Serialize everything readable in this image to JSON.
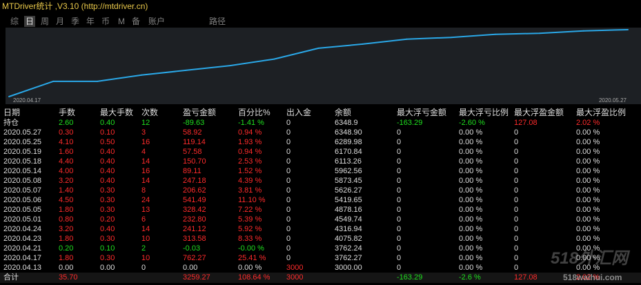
{
  "window": {
    "title": "MTDriver统计 ,V3.10 (http://mtdriver.cn)"
  },
  "tabs": [
    {
      "label": "综",
      "selected": false
    },
    {
      "label": "日",
      "selected": true
    },
    {
      "label": "周",
      "selected": false
    },
    {
      "label": "月",
      "selected": false
    },
    {
      "label": "季",
      "selected": false
    },
    {
      "label": "年",
      "selected": false
    },
    {
      "label": "币",
      "selected": false
    },
    {
      "label": "M",
      "selected": false
    },
    {
      "label": "备",
      "selected": false
    },
    {
      "label": "账户",
      "selected": false
    },
    {
      "label": "路径",
      "selected": false
    }
  ],
  "colors": {
    "title": "#e9c84a",
    "tab_text": "#808080",
    "tab_selected_bg": "#3d3d3d",
    "tab_selected_text": "#e6e6e6",
    "chart_bg": "#1d2024",
    "axis_label": "#a8a8a8",
    "white": "#dedede",
    "red": "#ff2b2b",
    "green": "#1fe01f",
    "total_row_bg": "#151515"
  },
  "chart_data": {
    "type": "line",
    "series": [
      {
        "values": [
          3000.0,
          3762.27,
          3762.24,
          4075.82,
          4316.94,
          4549.74,
          4878.16,
          5419.65,
          5626.27,
          5873.45,
          5962.56,
          6113.26,
          6170.84,
          6289.98,
          6348.9
        ]
      }
    ],
    "x_tick_labels": [
      "2020.04.17",
      "2020.05.27"
    ],
    "ylim": [
      3000.0,
      6348.9
    ],
    "grid": false,
    "line_color": "#2aa8e8"
  },
  "table": {
    "columns": [
      "日期",
      "手数",
      "最大手数",
      "次数",
      "盈亏金额",
      "百分比%",
      "出入金",
      "余额",
      "最大浮亏金额",
      "最大浮亏比例",
      "最大浮盈金额",
      "最大浮盈比例"
    ],
    "rows": [
      {
        "cells": [
          "持仓",
          "2.60",
          "0.40",
          "12",
          "-89.63",
          "-1.41 %",
          "0",
          "6348.9",
          "-163.29",
          "-2.60 %",
          "127.08",
          "2.02 %"
        ],
        "tones": [
          "white",
          "green",
          "green",
          "green",
          "green",
          "green",
          "white",
          "white",
          "green",
          "green",
          "red",
          "red"
        ]
      },
      {
        "cells": [
          "2020.05.27",
          "0.30",
          "0.10",
          "3",
          "58.92",
          "0.94 %",
          "0",
          "6348.90",
          "0",
          "0.00 %",
          "0",
          "0.00 %"
        ],
        "tones": [
          "white",
          "red",
          "red",
          "red",
          "red",
          "red",
          "white",
          "white",
          "white",
          "white",
          "white",
          "white"
        ]
      },
      {
        "cells": [
          "2020.05.25",
          "4.10",
          "0.50",
          "16",
          "119.14",
          "1.93 %",
          "0",
          "6289.98",
          "0",
          "0.00 %",
          "0",
          "0.00 %"
        ],
        "tones": [
          "white",
          "red",
          "red",
          "red",
          "red",
          "red",
          "white",
          "white",
          "white",
          "white",
          "white",
          "white"
        ]
      },
      {
        "cells": [
          "2020.05.19",
          "1.60",
          "0.40",
          "4",
          "57.58",
          "0.94 %",
          "0",
          "6170.84",
          "0",
          "0.00 %",
          "0",
          "0.00 %"
        ],
        "tones": [
          "white",
          "red",
          "red",
          "red",
          "red",
          "red",
          "white",
          "white",
          "white",
          "white",
          "white",
          "white"
        ]
      },
      {
        "cells": [
          "2020.05.18",
          "4.40",
          "0.40",
          "14",
          "150.70",
          "2.53 %",
          "0",
          "6113.26",
          "0",
          "0.00 %",
          "0",
          "0.00 %"
        ],
        "tones": [
          "white",
          "red",
          "red",
          "red",
          "red",
          "red",
          "white",
          "white",
          "white",
          "white",
          "white",
          "white"
        ]
      },
      {
        "cells": [
          "2020.05.14",
          "4.00",
          "0.40",
          "16",
          "89.11",
          "1.52 %",
          "0",
          "5962.56",
          "0",
          "0.00 %",
          "0",
          "0.00 %"
        ],
        "tones": [
          "white",
          "red",
          "red",
          "red",
          "red",
          "red",
          "white",
          "white",
          "white",
          "white",
          "white",
          "white"
        ]
      },
      {
        "cells": [
          "2020.05.08",
          "3.20",
          "0.40",
          "14",
          "247.18",
          "4.39 %",
          "0",
          "5873.45",
          "0",
          "0.00 %",
          "0",
          "0.00 %"
        ],
        "tones": [
          "white",
          "red",
          "red",
          "red",
          "red",
          "red",
          "white",
          "white",
          "white",
          "white",
          "white",
          "white"
        ]
      },
      {
        "cells": [
          "2020.05.07",
          "1.40",
          "0.30",
          "8",
          "206.62",
          "3.81 %",
          "0",
          "5626.27",
          "0",
          "0.00 %",
          "0",
          "0.00 %"
        ],
        "tones": [
          "white",
          "red",
          "red",
          "red",
          "red",
          "red",
          "white",
          "white",
          "white",
          "white",
          "white",
          "white"
        ]
      },
      {
        "cells": [
          "2020.05.06",
          "4.50",
          "0.30",
          "24",
          "541.49",
          "11.10 %",
          "0",
          "5419.65",
          "0",
          "0.00 %",
          "0",
          "0.00 %"
        ],
        "tones": [
          "white",
          "red",
          "red",
          "red",
          "red",
          "red",
          "white",
          "white",
          "white",
          "white",
          "white",
          "white"
        ]
      },
      {
        "cells": [
          "2020.05.05",
          "1.80",
          "0.30",
          "13",
          "328.42",
          "7.22 %",
          "0",
          "4878.16",
          "0",
          "0.00 %",
          "0",
          "0.00 %"
        ],
        "tones": [
          "white",
          "red",
          "red",
          "red",
          "red",
          "red",
          "white",
          "white",
          "white",
          "white",
          "white",
          "white"
        ]
      },
      {
        "cells": [
          "2020.05.01",
          "0.80",
          "0.20",
          "6",
          "232.80",
          "5.39 %",
          "0",
          "4549.74",
          "0",
          "0.00 %",
          "0",
          "0.00 %"
        ],
        "tones": [
          "white",
          "red",
          "red",
          "red",
          "red",
          "red",
          "white",
          "white",
          "white",
          "white",
          "white",
          "white"
        ]
      },
      {
        "cells": [
          "2020.04.24",
          "3.20",
          "0.40",
          "14",
          "241.12",
          "5.92 %",
          "0",
          "4316.94",
          "0",
          "0.00 %",
          "0",
          "0.00 %"
        ],
        "tones": [
          "white",
          "red",
          "red",
          "red",
          "red",
          "red",
          "white",
          "white",
          "white",
          "white",
          "white",
          "white"
        ]
      },
      {
        "cells": [
          "2020.04.23",
          "1.80",
          "0.30",
          "10",
          "313.58",
          "8.33 %",
          "0",
          "4075.82",
          "0",
          "0.00 %",
          "0",
          "0.00 %"
        ],
        "tones": [
          "white",
          "red",
          "red",
          "red",
          "red",
          "red",
          "white",
          "white",
          "white",
          "white",
          "white",
          "white"
        ]
      },
      {
        "cells": [
          "2020.04.21",
          "0.20",
          "0.10",
          "2",
          "-0.03",
          "-0.00 %",
          "0",
          "3762.24",
          "0",
          "0.00 %",
          "0",
          "0.00 %"
        ],
        "tones": [
          "white",
          "green",
          "green",
          "green",
          "green",
          "green",
          "white",
          "white",
          "white",
          "white",
          "white",
          "white"
        ]
      },
      {
        "cells": [
          "2020.04.17",
          "1.80",
          "0.30",
          "10",
          "762.27",
          "25.41 %",
          "0",
          "3762.27",
          "0",
          "0.00 %",
          "0",
          "0.00 %"
        ],
        "tones": [
          "white",
          "red",
          "red",
          "red",
          "red",
          "red",
          "white",
          "white",
          "white",
          "white",
          "white",
          "white"
        ]
      },
      {
        "cells": [
          "2020.04.13",
          "0.00",
          "0.00",
          "0",
          "0.00",
          "0.00 %",
          "3000",
          "3000.00",
          "0",
          "0.00 %",
          "0",
          "0.00 %"
        ],
        "tones": [
          "white",
          "white",
          "white",
          "white",
          "white",
          "white",
          "red",
          "white",
          "white",
          "white",
          "white",
          "white"
        ]
      },
      {
        "cells": [
          "合计",
          "35.70",
          "",
          "",
          "3259.27",
          "108.64 %",
          "3000",
          "",
          "-163.29",
          "-2.6 %",
          "127.08",
          "2.02 %"
        ],
        "tones": [
          "white",
          "red",
          "white",
          "white",
          "red",
          "red",
          "red",
          "white",
          "green",
          "green",
          "red",
          "red"
        ],
        "is_total": true
      }
    ]
  },
  "watermark": {
    "logo": "518外汇网",
    "site": "518waihui.com"
  }
}
